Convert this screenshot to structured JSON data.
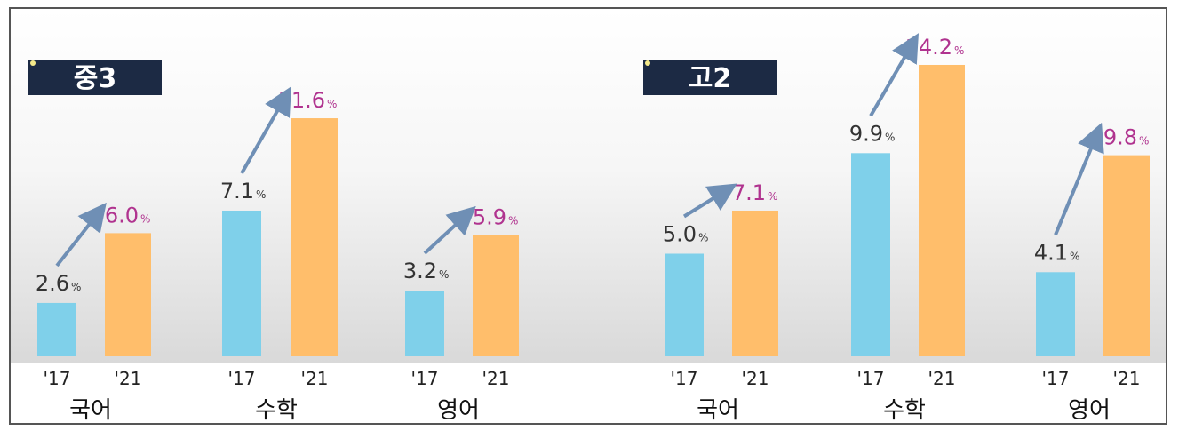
{
  "chart_data": [
    {
      "type": "bar",
      "title": "중3",
      "categories": [
        "국어",
        "수학",
        "영어"
      ],
      "x_ticks": [
        "'17",
        "'21"
      ],
      "unit": "%",
      "series": [
        {
          "name": "'17",
          "values": [
            2.6,
            7.1,
            3.2
          ]
        },
        {
          "name": "'21",
          "values": [
            6.0,
            11.6,
            5.9
          ]
        }
      ],
      "ylim": [
        0,
        16
      ]
    },
    {
      "type": "bar",
      "title": "고2",
      "categories": [
        "국어",
        "수학",
        "영어"
      ],
      "x_ticks": [
        "'17",
        "'21"
      ],
      "unit": "%",
      "series": [
        {
          "name": "'17",
          "values": [
            5.0,
            9.9,
            4.1
          ]
        },
        {
          "name": "'21",
          "values": [
            7.1,
            14.2,
            9.8
          ]
        }
      ],
      "ylim": [
        0,
        16
      ]
    }
  ],
  "colors": {
    "bar_2017": "#7fd0ea",
    "bar_2021": "#ffbe6b",
    "label_2017": "#333333",
    "label_2021": "#b0338f",
    "badge": "#1c2a44",
    "arrow": "#6f8fb5"
  },
  "labels": {
    "value_format": "{v}",
    "percent_sign": "%"
  }
}
